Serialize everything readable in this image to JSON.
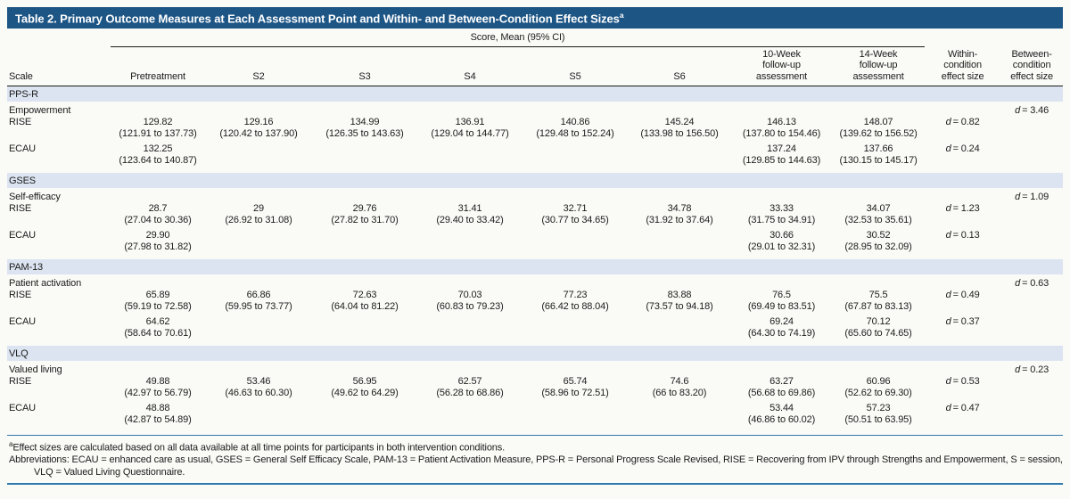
{
  "colors": {
    "title_bar_bg": "#1d5585",
    "title_text": "#ffffff",
    "section_band_bg": "#dce4f1",
    "blue_rule": "#2f78ad",
    "black_rule": "#1a1a1a"
  },
  "header": {
    "title": "Table 2. Primary Outcome Measures at Each Assessment Point and Within- and Between-Condition Effect Sizes",
    "title_sup": "a",
    "spanner": "Score, Mean (95% CI)",
    "col_scale": "Scale",
    "col_pretreatment": "Pretreatment",
    "col_s2": "S2",
    "col_s3": "S3",
    "col_s4": "S4",
    "col_s5": "S5",
    "col_s6": "S6",
    "col_w10": [
      "10-Week",
      "follow-up",
      "assessment"
    ],
    "col_w14": [
      "14-Week",
      "follow-up",
      "assessment"
    ],
    "col_within": [
      "Within-",
      "condition",
      "effect size"
    ],
    "col_between": [
      "Between-",
      "condition",
      "effect size"
    ]
  },
  "sections": [
    {
      "scale": "PPS-R",
      "measure": "Empowerment",
      "between": {
        "sym": "d",
        "val": "= 3.46"
      },
      "rows": [
        {
          "group": "RISE",
          "within": {
            "sym": "d",
            "val": "= 0.82"
          },
          "cells": [
            {
              "mean": "129.82",
              "ci": "(121.91 to 137.73)"
            },
            {
              "mean": "129.16",
              "ci": "(120.42 to 137.90)"
            },
            {
              "mean": "134.99",
              "ci": "(126.35 to 143.63)"
            },
            {
              "mean": "136.91",
              "ci": "(129.04 to 144.77)"
            },
            {
              "mean": "140.86",
              "ci": "(129.48 to 152.24)"
            },
            {
              "mean": "145.24",
              "ci": "(133.98 to 156.50)"
            },
            {
              "mean": "146.13",
              "ci": "(137.80 to 154.46)"
            },
            {
              "mean": "148.07",
              "ci": "(139.62 to 156.52)"
            }
          ]
        },
        {
          "group": "ECAU",
          "within": {
            "sym": "d",
            "val": "= 0.24"
          },
          "cells": [
            {
              "mean": "132.25",
              "ci": "(123.64 to 140.87)"
            },
            {
              "mean": "",
              "ci": ""
            },
            {
              "mean": "",
              "ci": ""
            },
            {
              "mean": "",
              "ci": ""
            },
            {
              "mean": "",
              "ci": ""
            },
            {
              "mean": "",
              "ci": ""
            },
            {
              "mean": "137.24",
              "ci": "(129.85 to 144.63)"
            },
            {
              "mean": "137.66",
              "ci": "(130.15 to 145.17)"
            }
          ]
        }
      ]
    },
    {
      "scale": "GSES",
      "measure": "Self-efficacy",
      "between": {
        "sym": "d",
        "val": "= 1.09"
      },
      "rows": [
        {
          "group": "RISE",
          "within": {
            "sym": "d",
            "val": "= 1.23"
          },
          "cells": [
            {
              "mean": "28.7",
              "ci": "(27.04 to 30.36)"
            },
            {
              "mean": "29",
              "ci": "(26.92 to 31.08)"
            },
            {
              "mean": "29.76",
              "ci": "(27.82 to 31.70)"
            },
            {
              "mean": "31.41",
              "ci": "(29.40 to 33.42)"
            },
            {
              "mean": "32.71",
              "ci": "(30.77 to 34.65)"
            },
            {
              "mean": "34.78",
              "ci": "(31.92 to 37.64)"
            },
            {
              "mean": "33.33",
              "ci": "(31.75 to 34.91)"
            },
            {
              "mean": "34.07",
              "ci": "(32.53 to 35.61)"
            }
          ]
        },
        {
          "group": "ECAU",
          "within": {
            "sym": "d",
            "val": "= 0.13"
          },
          "cells": [
            {
              "mean": "29.90",
              "ci": "(27.98 to 31.82)"
            },
            {
              "mean": "",
              "ci": ""
            },
            {
              "mean": "",
              "ci": ""
            },
            {
              "mean": "",
              "ci": ""
            },
            {
              "mean": "",
              "ci": ""
            },
            {
              "mean": "",
              "ci": ""
            },
            {
              "mean": "30.66",
              "ci": "(29.01 to 32.31)"
            },
            {
              "mean": "30.52",
              "ci": "(28.95 to 32.09)"
            }
          ]
        }
      ]
    },
    {
      "scale": "PAM-13",
      "measure": "Patient activation",
      "between": {
        "sym": "d",
        "val": "= 0.63"
      },
      "rows": [
        {
          "group": "RISE",
          "within": {
            "sym": "d",
            "val": "= 0.49"
          },
          "cells": [
            {
              "mean": "65.89",
              "ci": "(59.19 to 72.58)"
            },
            {
              "mean": "66.86",
              "ci": "(59.95 to 73.77)"
            },
            {
              "mean": "72.63",
              "ci": "(64.04 to 81.22)"
            },
            {
              "mean": "70.03",
              "ci": "(60.83 to 79.23)"
            },
            {
              "mean": "77.23",
              "ci": "(66.42 to 88.04)"
            },
            {
              "mean": "83.88",
              "ci": "(73.57 to 94.18)"
            },
            {
              "mean": "76.5",
              "ci": "(69.49 to 83.51)"
            },
            {
              "mean": "75.5",
              "ci": "(67.87 to 83.13)"
            }
          ]
        },
        {
          "group": "ECAU",
          "within": {
            "sym": "d",
            "val": "= 0.37"
          },
          "cells": [
            {
              "mean": "64.62",
              "ci": "(58.64 to 70.61)"
            },
            {
              "mean": "",
              "ci": ""
            },
            {
              "mean": "",
              "ci": ""
            },
            {
              "mean": "",
              "ci": ""
            },
            {
              "mean": "",
              "ci": ""
            },
            {
              "mean": "",
              "ci": ""
            },
            {
              "mean": "69.24",
              "ci": "(64.30 to 74.19)"
            },
            {
              "mean": "70.12",
              "ci": "(65.60 to 74.65)"
            }
          ]
        }
      ]
    },
    {
      "scale": "VLQ",
      "measure": "Valued living",
      "between": {
        "sym": "d",
        "val": "= 0.23"
      },
      "rows": [
        {
          "group": "RISE",
          "within": {
            "sym": "d",
            "val": "= 0.53"
          },
          "cells": [
            {
              "mean": "49.88",
              "ci": "(42.97 to 56.79)"
            },
            {
              "mean": "53.46",
              "ci": "(46.63 to 60.30)"
            },
            {
              "mean": "56.95",
              "ci": "(49.62 to 64.29)"
            },
            {
              "mean": "62.57",
              "ci": "(56.28 to 68.86)"
            },
            {
              "mean": "65.74",
              "ci": "(58.96 to 72.51)"
            },
            {
              "mean": "74.6",
              "ci": "(66 to 83.20)"
            },
            {
              "mean": "63.27",
              "ci": "(56.68 to 69.86)"
            },
            {
              "mean": "60.96",
              "ci": "(52.62 to 69.30)"
            }
          ]
        },
        {
          "group": "ECAU",
          "within": {
            "sym": "d",
            "val": "= 0.47"
          },
          "cells": [
            {
              "mean": "48.88",
              "ci": "(42.87 to 54.89)"
            },
            {
              "mean": "",
              "ci": ""
            },
            {
              "mean": "",
              "ci": ""
            },
            {
              "mean": "",
              "ci": ""
            },
            {
              "mean": "",
              "ci": ""
            },
            {
              "mean": "",
              "ci": ""
            },
            {
              "mean": "53.44",
              "ci": "(46.86 to 60.02)"
            },
            {
              "mean": "57.23",
              "ci": "(50.51 to 63.95)"
            }
          ]
        }
      ]
    }
  ],
  "footnotes": {
    "a_sup": "a",
    "a_text": "Effect sizes are calculated based on all data available at all time points for participants in both intervention conditions.",
    "abbreviations": "Abbreviations: ECAU = enhanced care as usual, GSES = General Self Efficacy Scale, PAM-13 = Patient Activation Measure, PPS-R = Personal Progress Scale Revised, RISE = Recovering from IPV through Strengths and Empowerment, S = session, VLQ = Valued Living Questionnaire."
  }
}
